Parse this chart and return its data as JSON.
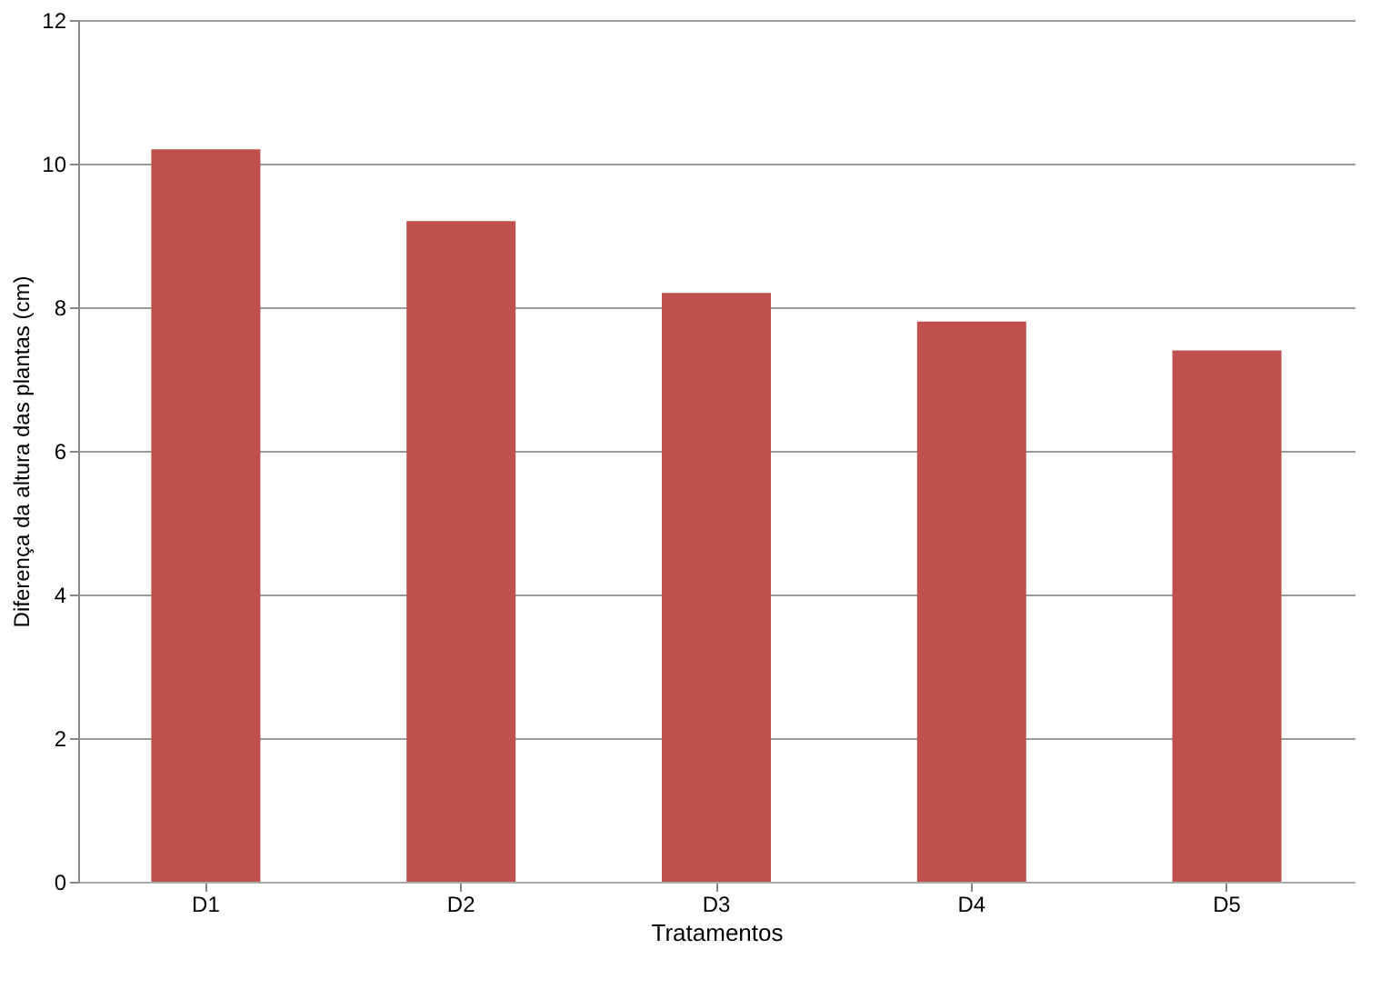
{
  "chart_data": {
    "type": "bar",
    "xlabel": "Tratamentos",
    "ylabel": "Diferença da altura das plantas (cm)",
    "categories": [
      "D1",
      "D2",
      "D3",
      "D4",
      "D5"
    ],
    "values": [
      10.2,
      9.2,
      8.2,
      7.8,
      7.4
    ],
    "color": "#c0504d",
    "ylim": [
      0,
      12
    ],
    "yticks": [
      0,
      2,
      4,
      6,
      8,
      10,
      12
    ],
    "grid": "y"
  }
}
